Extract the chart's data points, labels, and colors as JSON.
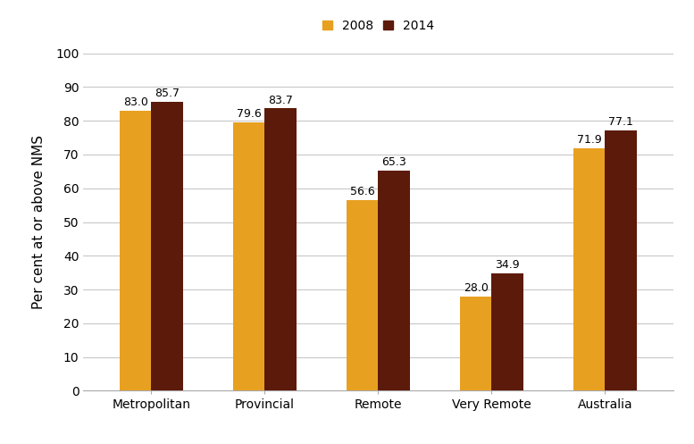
{
  "categories": [
    "Metropolitan",
    "Provincial",
    "Remote",
    "Very Remote",
    "Australia"
  ],
  "values_2008": [
    83.0,
    79.6,
    56.6,
    28.0,
    71.9
  ],
  "values_2014": [
    85.7,
    83.7,
    65.3,
    34.9,
    77.1
  ],
  "color_2008": "#E8A020",
  "color_2014": "#5C1A0A",
  "ylabel": "Per cent at or above NMS",
  "ylim": [
    0,
    100
  ],
  "yticks": [
    0,
    10,
    20,
    30,
    40,
    50,
    60,
    70,
    80,
    90,
    100
  ],
  "legend_labels": [
    "2008",
    "2014"
  ],
  "bar_width": 0.28,
  "background_color": "#ffffff",
  "grid_color": "#c8c8c8",
  "label_fontsize": 9,
  "tick_fontsize": 10,
  "ylabel_fontsize": 11
}
